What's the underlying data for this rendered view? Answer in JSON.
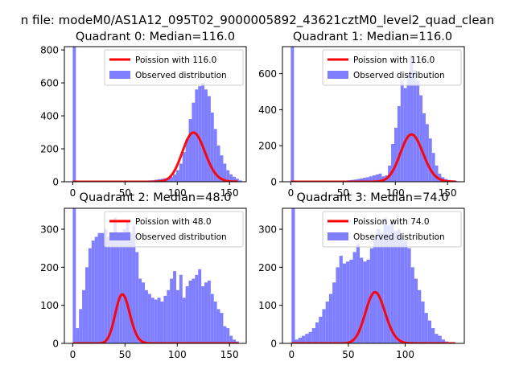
{
  "figure": {
    "suptitle": "n file: modeM0/AS1A12_095T02_9000005892_43621cztM0_level2_quad_clean"
  },
  "colors": {
    "observed": "#7f7fff",
    "poisson": "#ff0000",
    "axis": "#000000",
    "legend_frame": "#cccccc"
  },
  "chart_data": [
    {
      "type": "bar",
      "title": "Quadrant 0: Median=116.0",
      "xlim": [
        -8,
        166
      ],
      "ylim": [
        0,
        820
      ],
      "xticks": [
        0,
        50,
        100,
        150
      ],
      "yticks": [
        0,
        200,
        400,
        600,
        800
      ],
      "legend": {
        "position": "top-right",
        "entries": [
          "Poission with 116.0",
          "Observed distribution"
        ]
      },
      "series": [
        {
          "name": "Observed distribution",
          "kind": "histogram",
          "bin_width": 3,
          "bins_start": [
            0,
            3,
            6,
            9,
            12,
            15,
            18,
            21,
            24,
            27,
            30,
            33,
            36,
            39,
            42,
            45,
            48,
            51,
            54,
            57,
            60,
            63,
            66,
            69,
            72,
            75,
            78,
            81,
            84,
            87,
            90,
            93,
            96,
            99,
            102,
            105,
            108,
            111,
            114,
            117,
            120,
            123,
            126,
            129,
            132,
            135,
            138,
            141,
            144,
            147,
            150,
            153,
            156,
            159,
            162
          ],
          "counts": [
            820,
            0,
            0,
            0,
            0,
            0,
            0,
            0,
            0,
            0,
            0,
            0,
            0,
            0,
            0,
            0,
            0,
            0,
            2,
            2,
            3,
            3,
            5,
            6,
            8,
            9,
            12,
            15,
            18,
            22,
            25,
            30,
            45,
            70,
            110,
            180,
            260,
            380,
            480,
            560,
            580,
            600,
            560,
            520,
            420,
            320,
            220,
            160,
            110,
            70,
            45,
            30,
            18,
            8,
            0
          ]
        },
        {
          "name": "Poission with 116.0",
          "kind": "line",
          "mean": 116.0,
          "scale": 8064
        }
      ]
    },
    {
      "type": "bar",
      "title": "Quadrant 1: Median=116.0",
      "xlim": [
        -8,
        166
      ],
      "ylim": [
        0,
        750
      ],
      "xticks": [
        0,
        50,
        100,
        150
      ],
      "yticks": [
        0,
        200,
        400,
        600
      ],
      "legend": {
        "position": "top-right",
        "entries": [
          "Poission with 116.0",
          "Observed distribution"
        ]
      },
      "series": [
        {
          "name": "Observed distribution",
          "kind": "histogram",
          "bin_width": 3,
          "bins_start": [
            0,
            3,
            6,
            9,
            12,
            15,
            18,
            21,
            24,
            27,
            30,
            33,
            36,
            39,
            42,
            45,
            48,
            51,
            54,
            57,
            60,
            63,
            66,
            69,
            72,
            75,
            78,
            81,
            84,
            87,
            90,
            93,
            96,
            99,
            102,
            105,
            108,
            111,
            114,
            117,
            120,
            123,
            126,
            129,
            132,
            135,
            138,
            141,
            144,
            147,
            150,
            153,
            156,
            159,
            162
          ],
          "counts": [
            750,
            0,
            0,
            0,
            0,
            0,
            0,
            0,
            0,
            0,
            0,
            0,
            0,
            0,
            0,
            0,
            4,
            6,
            8,
            10,
            12,
            15,
            18,
            22,
            25,
            30,
            35,
            40,
            45,
            30,
            35,
            90,
            210,
            300,
            420,
            560,
            520,
            600,
            700,
            620,
            560,
            480,
            380,
            320,
            240,
            160,
            90,
            45,
            25,
            15,
            10,
            8,
            5,
            3,
            0
          ]
        },
        {
          "name": "Poission with 116.0",
          "kind": "line",
          "mean": 116.0,
          "scale": 7100
        }
      ]
    },
    {
      "type": "bar",
      "title": "Quadrant 2: Median=48.0",
      "xlim": [
        -8,
        166
      ],
      "ylim": [
        0,
        355
      ],
      "xticks": [
        0,
        50,
        100,
        150
      ],
      "yticks": [
        0,
        100,
        200,
        300
      ],
      "legend": {
        "position": "top-right",
        "entries": [
          "Poission with 48.0",
          "Observed distribution"
        ]
      },
      "series": [
        {
          "name": "Observed distribution",
          "kind": "histogram",
          "bin_width": 3,
          "bins_start": [
            0,
            3,
            6,
            9,
            12,
            15,
            18,
            21,
            24,
            27,
            30,
            33,
            36,
            39,
            42,
            45,
            48,
            51,
            54,
            57,
            60,
            63,
            66,
            69,
            72,
            75,
            78,
            81,
            84,
            87,
            90,
            93,
            96,
            99,
            102,
            105,
            108,
            111,
            114,
            117,
            120,
            123,
            126,
            129,
            132,
            135,
            138,
            141,
            144,
            147,
            150,
            153,
            156,
            159
          ],
          "counts": [
            355,
            40,
            90,
            140,
            200,
            250,
            270,
            280,
            290,
            290,
            300,
            280,
            285,
            330,
            290,
            280,
            300,
            320,
            290,
            310,
            240,
            170,
            160,
            140,
            130,
            120,
            115,
            120,
            110,
            125,
            140,
            170,
            190,
            140,
            180,
            120,
            150,
            165,
            170,
            180,
            195,
            150,
            160,
            165,
            130,
            110,
            90,
            80,
            45,
            40,
            20,
            10,
            5,
            0
          ]
        },
        {
          "name": "Poission with 48.0",
          "kind": "line",
          "mean": 48.0,
          "scale": 2240
        }
      ]
    },
    {
      "type": "bar",
      "title": "Quadrant 3: Median=74.0",
      "xlim": [
        -8,
        152
      ],
      "ylim": [
        0,
        355
      ],
      "xticks": [
        0,
        50,
        100
      ],
      "yticks": [
        0,
        100,
        200,
        300
      ],
      "legend": {
        "position": "top-right",
        "entries": [
          "Poission with 74.0",
          "Observed distribution"
        ]
      },
      "series": [
        {
          "name": "Observed distribution",
          "kind": "histogram",
          "bin_width": 3,
          "bins_start": [
            0,
            3,
            6,
            9,
            12,
            15,
            18,
            21,
            24,
            27,
            30,
            33,
            36,
            39,
            42,
            45,
            48,
            51,
            54,
            57,
            60,
            63,
            66,
            69,
            72,
            75,
            78,
            81,
            84,
            87,
            90,
            93,
            96,
            99,
            102,
            105,
            108,
            111,
            114,
            117,
            120,
            123,
            126,
            129,
            132,
            135,
            138
          ],
          "counts": [
            355,
            10,
            15,
            20,
            25,
            30,
            40,
            55,
            70,
            90,
            110,
            130,
            160,
            200,
            230,
            210,
            215,
            220,
            240,
            260,
            225,
            215,
            220,
            250,
            280,
            300,
            290,
            330,
            310,
            320,
            295,
            300,
            280,
            270,
            250,
            200,
            170,
            140,
            110,
            80,
            60,
            40,
            25,
            20,
            10,
            5,
            0
          ]
        },
        {
          "name": "Poission with 74.0",
          "kind": "line",
          "mean": 74.0,
          "scale": 2900
        }
      ]
    }
  ]
}
